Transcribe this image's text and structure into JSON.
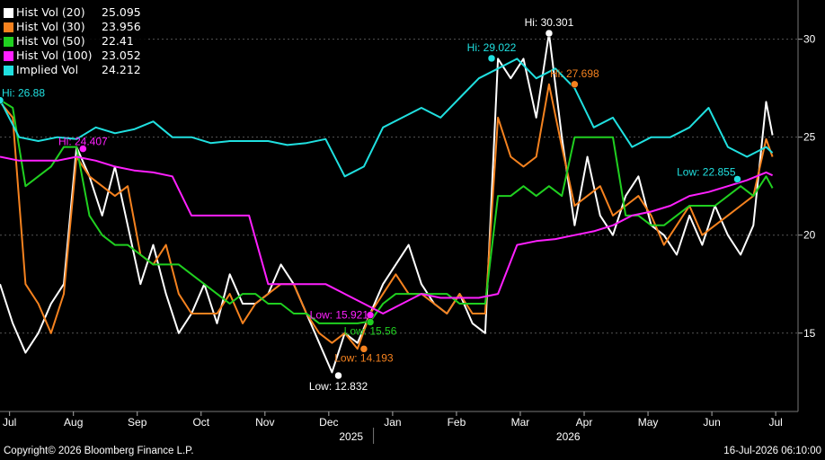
{
  "footer": {
    "copyright": "Copyright© 2026 Bloomberg Finance L.P.",
    "timestamp": "16-Jul-2026 06:10:00"
  },
  "legend": [
    {
      "name": "Hist Vol (20)",
      "value": "25.095",
      "color": "#ffffff"
    },
    {
      "name": "Hist Vol (30)",
      "value": "23.956",
      "color": "#f5821f"
    },
    {
      "name": "Hist Vol (50)",
      "value": "22.41",
      "color": "#20d020"
    },
    {
      "name": "Hist Vol (100)",
      "value": "23.052",
      "color": "#ff20ff"
    },
    {
      "name": "Implied Vol",
      "value": "24.212",
      "color": "#20e0e0"
    }
  ],
  "chart_data": {
    "type": "line",
    "ylim": [
      11,
      32
    ],
    "yticks": [
      15,
      20,
      25,
      30
    ],
    "xlim": [
      0,
      12.5
    ],
    "month_ticks": [
      "Jul",
      "Aug",
      "Sep",
      "Oct",
      "Nov",
      "Dec",
      "Jan",
      "Feb",
      "Mar",
      "Apr",
      "May",
      "Jun",
      "Jul"
    ],
    "year_labels": [
      {
        "label": "2025",
        "at": 5.5
      },
      {
        "label": "2026",
        "at": 8.9
      }
    ],
    "series": [
      {
        "name": "Hist Vol (20)",
        "color": "#ffffff",
        "x": [
          0,
          0.2,
          0.4,
          0.6,
          0.8,
          1.0,
          1.2,
          1.4,
          1.6,
          1.8,
          2.0,
          2.2,
          2.4,
          2.6,
          2.8,
          3.0,
          3.2,
          3.4,
          3.6,
          3.8,
          4.0,
          4.2,
          4.4,
          4.6,
          4.8,
          5.0,
          5.2,
          5.4,
          5.6,
          5.8,
          6.0,
          6.2,
          6.4,
          6.6,
          6.8,
          7.0,
          7.2,
          7.4,
          7.6,
          7.8,
          8.0,
          8.2,
          8.4,
          8.6,
          8.8,
          9.0,
          9.2,
          9.4,
          9.6,
          9.8,
          10.0,
          10.2,
          10.4,
          10.6,
          10.8,
          11.0,
          11.2,
          11.4,
          11.6,
          11.8,
          12.0,
          12.1
        ],
        "y": [
          17.5,
          15.5,
          14.0,
          15.0,
          16.5,
          17.5,
          24.5,
          23.0,
          21.0,
          23.5,
          20.5,
          17.5,
          19.5,
          17.0,
          15.0,
          16.0,
          17.5,
          15.5,
          18.0,
          16.5,
          16.5,
          17.0,
          18.5,
          17.5,
          16.0,
          14.5,
          13.0,
          15.0,
          14.5,
          16.0,
          17.5,
          18.5,
          19.5,
          17.5,
          16.5,
          16.0,
          17.0,
          15.5,
          15.0,
          29.0,
          28.0,
          29.0,
          26.0,
          30.3,
          25.0,
          20.5,
          24.0,
          21.0,
          20.0,
          22.0,
          23.0,
          20.5,
          20.0,
          19.0,
          21.0,
          19.5,
          21.5,
          20.0,
          19.0,
          20.5,
          26.8,
          25.1
        ]
      },
      {
        "name": "Hist Vol (30)",
        "color": "#f5821f",
        "x": [
          0,
          0.2,
          0.4,
          0.6,
          0.8,
          1.0,
          1.2,
          1.4,
          1.6,
          1.8,
          2.0,
          2.2,
          2.4,
          2.6,
          2.8,
          3.0,
          3.2,
          3.4,
          3.6,
          3.8,
          4.0,
          4.2,
          4.4,
          4.6,
          4.8,
          5.0,
          5.2,
          5.4,
          5.6,
          5.8,
          6.0,
          6.2,
          6.4,
          6.6,
          6.8,
          7.0,
          7.2,
          7.4,
          7.6,
          7.8,
          8.0,
          8.2,
          8.4,
          8.6,
          8.8,
          9.0,
          9.2,
          9.4,
          9.6,
          9.8,
          10.0,
          10.2,
          10.4,
          10.6,
          10.8,
          11.0,
          11.2,
          11.4,
          11.6,
          11.8,
          12.0,
          12.1
        ],
        "y": [
          26.8,
          26.0,
          17.5,
          16.5,
          15.0,
          17.0,
          24.0,
          23.0,
          22.5,
          22.0,
          22.5,
          19.0,
          18.5,
          19.5,
          17.0,
          16.0,
          16.0,
          16.0,
          17.0,
          15.5,
          16.5,
          17.0,
          17.5,
          17.5,
          16.0,
          15.0,
          14.5,
          15.0,
          14.2,
          16.0,
          17.0,
          18.0,
          17.0,
          17.0,
          16.5,
          16.0,
          17.0,
          16.0,
          16.0,
          26.0,
          24.0,
          23.5,
          24.0,
          27.7,
          24.5,
          21.5,
          22.0,
          22.5,
          21.0,
          21.5,
          22.0,
          21.0,
          19.5,
          20.5,
          21.5,
          20.0,
          20.5,
          21.0,
          21.5,
          22.0,
          24.9,
          24.0
        ]
      },
      {
        "name": "Hist Vol (50)",
        "color": "#20d020",
        "x": [
          0,
          0.2,
          0.4,
          0.6,
          0.8,
          1.0,
          1.2,
          1.4,
          1.6,
          1.8,
          2.0,
          2.2,
          2.4,
          2.6,
          2.8,
          3.0,
          3.2,
          3.4,
          3.6,
          3.8,
          4.0,
          4.2,
          4.4,
          4.6,
          4.8,
          5.0,
          5.2,
          5.4,
          5.6,
          5.8,
          6.0,
          6.2,
          6.4,
          6.6,
          6.8,
          7.0,
          7.2,
          7.4,
          7.6,
          7.8,
          8.0,
          8.2,
          8.4,
          8.6,
          8.8,
          9.0,
          9.2,
          9.4,
          9.6,
          9.8,
          10.0,
          10.2,
          10.4,
          10.6,
          10.8,
          11.0,
          11.2,
          11.4,
          11.6,
          11.8,
          12.0,
          12.1
        ],
        "y": [
          26.9,
          26.5,
          22.5,
          23.0,
          23.5,
          24.5,
          24.5,
          21.0,
          20.0,
          19.5,
          19.5,
          19.0,
          18.5,
          18.5,
          18.5,
          18.0,
          17.5,
          17.0,
          16.5,
          17.0,
          17.0,
          16.5,
          16.5,
          16.0,
          16.0,
          15.5,
          15.5,
          15.5,
          15.5,
          15.6,
          16.5,
          17.0,
          17.0,
          17.0,
          17.0,
          17.0,
          16.5,
          16.5,
          16.5,
          22.0,
          22.0,
          22.5,
          22.0,
          22.5,
          22.0,
          25.0,
          25.0,
          25.0,
          25.0,
          21.0,
          21.0,
          20.5,
          20.5,
          21.0,
          21.5,
          21.5,
          21.5,
          22.0,
          22.5,
          22.0,
          23.0,
          22.4
        ]
      },
      {
        "name": "Hist Vol (100)",
        "color": "#ff20ff",
        "x": [
          0,
          0.3,
          0.6,
          0.9,
          1.2,
          1.5,
          1.8,
          2.1,
          2.4,
          2.7,
          3.0,
          3.3,
          3.6,
          3.9,
          4.2,
          4.5,
          4.8,
          5.1,
          5.4,
          5.7,
          6.0,
          6.3,
          6.6,
          6.9,
          7.2,
          7.5,
          7.8,
          8.1,
          8.4,
          8.7,
          9.0,
          9.3,
          9.6,
          9.9,
          10.2,
          10.5,
          10.8,
          11.1,
          11.4,
          11.7,
          12.0,
          12.1
        ],
        "y": [
          24.0,
          23.8,
          23.8,
          23.8,
          24.0,
          23.8,
          23.5,
          23.3,
          23.2,
          23.0,
          21.0,
          21.0,
          21.0,
          21.0,
          17.5,
          17.5,
          17.5,
          17.5,
          17.0,
          16.5,
          16.0,
          16.5,
          17.0,
          16.8,
          16.8,
          16.8,
          17.0,
          19.5,
          19.7,
          19.8,
          20.0,
          20.2,
          20.5,
          21.0,
          21.2,
          21.5,
          22.0,
          22.2,
          22.5,
          22.8,
          23.2,
          23.05
        ]
      },
      {
        "name": "Implied Vol",
        "color": "#20e0e0",
        "x": [
          0,
          0.3,
          0.6,
          0.9,
          1.2,
          1.5,
          1.8,
          2.1,
          2.4,
          2.7,
          3.0,
          3.3,
          3.6,
          3.9,
          4.2,
          4.5,
          4.8,
          5.1,
          5.4,
          5.7,
          6.0,
          6.3,
          6.6,
          6.9,
          7.2,
          7.5,
          7.8,
          8.1,
          8.4,
          8.7,
          9.0,
          9.3,
          9.6,
          9.9,
          10.2,
          10.5,
          10.8,
          11.1,
          11.4,
          11.7,
          12.0,
          12.1
        ],
        "y": [
          26.9,
          25.0,
          24.8,
          25.0,
          24.9,
          25.5,
          25.2,
          25.4,
          25.8,
          25.0,
          25.0,
          24.7,
          24.8,
          24.8,
          24.8,
          24.6,
          24.7,
          24.9,
          23.0,
          23.5,
          25.5,
          26.0,
          26.5,
          26.0,
          27.0,
          28.0,
          28.5,
          29.0,
          28.0,
          28.5,
          27.5,
          25.5,
          26.0,
          24.5,
          25.0,
          25.0,
          25.5,
          26.5,
          24.5,
          24.0,
          24.5,
          24.2
        ]
      }
    ],
    "annotations": [
      {
        "label": "Hi: 26.88",
        "x": 0,
        "y": 26.88,
        "color": "#20e0e0",
        "anchor": "start",
        "dx": 2,
        "dy": -4
      },
      {
        "label": "Hi: 24.407",
        "x": 1.3,
        "y": 24.407,
        "color": "#ff20ff",
        "anchor": "middle",
        "dx": 0,
        "dy": -4
      },
      {
        "label": "Hi: 29.022",
        "x": 7.7,
        "y": 29.022,
        "color": "#20e0e0",
        "anchor": "middle",
        "dx": 0,
        "dy": -8
      },
      {
        "label": "Hi: 30.301",
        "x": 8.6,
        "y": 30.301,
        "color": "#ffffff",
        "anchor": "middle",
        "dx": 0,
        "dy": -8
      },
      {
        "label": "Hi: 27.698",
        "x": 9.0,
        "y": 27.698,
        "color": "#f5821f",
        "anchor": "middle",
        "dx": 0,
        "dy": -8
      },
      {
        "label": "Low: 15.921",
        "x": 5.8,
        "y": 15.921,
        "color": "#ff20ff",
        "anchor": "end",
        "dx": -2,
        "dy": 4
      },
      {
        "label": "Low: 15.56",
        "x": 5.8,
        "y": 15.56,
        "color": "#20d020",
        "anchor": "middle",
        "dx": 0,
        "dy": 14
      },
      {
        "label": "Low: 14.193",
        "x": 5.7,
        "y": 14.193,
        "color": "#f5821f",
        "anchor": "middle",
        "dx": 0,
        "dy": 14
      },
      {
        "label": "Low: 12.832",
        "x": 5.3,
        "y": 12.832,
        "color": "#ffffff",
        "anchor": "middle",
        "dx": 0,
        "dy": 16
      },
      {
        "label": "Low: 22.855",
        "x": 11.55,
        "y": 22.855,
        "color": "#20e0e0",
        "anchor": "end",
        "dx": -2,
        "dy": -4
      }
    ]
  }
}
